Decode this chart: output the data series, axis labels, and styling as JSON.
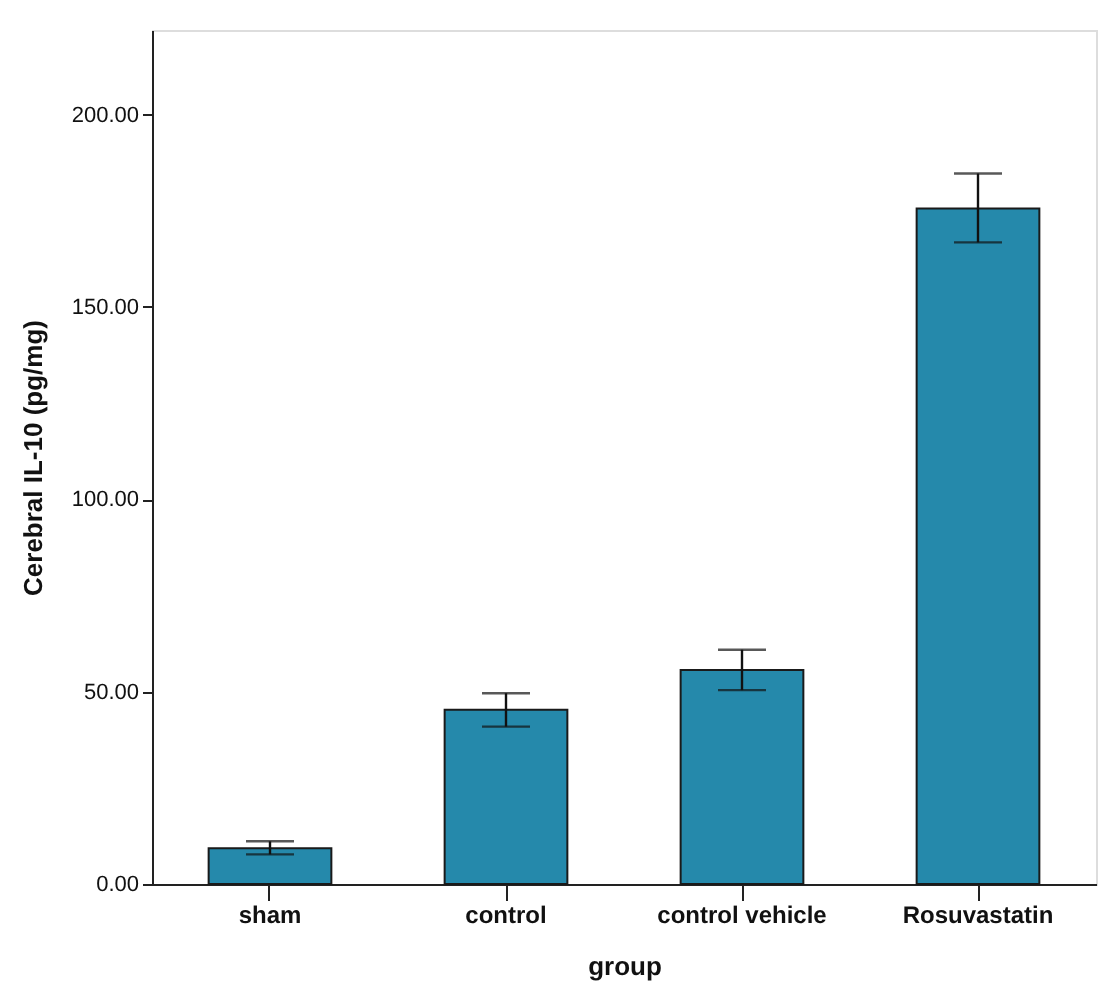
{
  "chart_data": {
    "type": "bar",
    "xlabel": "group",
    "ylabel": "Cerebral IL-10 (pg/mg)",
    "categories": [
      "sham",
      "control",
      "control vehicle",
      "Rosuvastatin"
    ],
    "values": [
      9.3,
      45.3,
      55.6,
      175.6
    ],
    "errors": [
      [
        7.7,
        11.1
      ],
      [
        40.9,
        49.6
      ],
      [
        50.4,
        60.9
      ],
      [
        166.8,
        184.7
      ]
    ],
    "color": "#2589ab",
    "ylim": [
      0,
      222
    ],
    "yticks": [
      {
        "value": 0,
        "label": "0.00"
      },
      {
        "value": 50,
        "label": "50.00"
      },
      {
        "value": 100,
        "label": "100.00"
      },
      {
        "value": 150,
        "label": "150.00"
      },
      {
        "value": 200,
        "label": "200.00"
      }
    ],
    "grid": false
  }
}
